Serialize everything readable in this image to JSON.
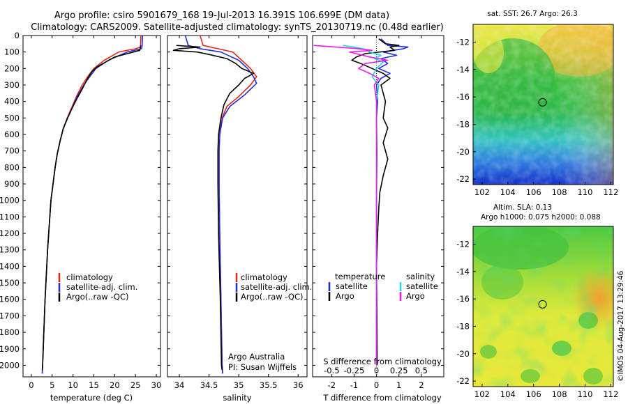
{
  "title_line1": "Argo profile: csiro 5901679_168 19-Jul-2013 16.391S 106.699E (DM data)",
  "title_line2": "Climatology: CARS2009. Satellite-adjusted climatology: synTS_20130719.nc (0.48d earlier)",
  "side_stamp": "©IMOS 04-Aug-2017 13:29:46",
  "colors": {
    "climatology": "#e8271c",
    "satellite": "#1f2fd6",
    "argo": "#000000",
    "sal_satellite": "#22d3e6",
    "sal_argo": "#e61ce6"
  },
  "chart_data": [
    {
      "type": "line",
      "name": "temperature",
      "xlabel": "temperature (deg C)",
      "ylabel": "",
      "xlim": [
        -2,
        31
      ],
      "ylim": [
        2070,
        0
      ],
      "xticks": [
        0,
        5,
        10,
        15,
        20,
        25,
        30
      ],
      "yticks": [
        0,
        100,
        200,
        300,
        400,
        500,
        600,
        700,
        800,
        900,
        1000,
        1100,
        1200,
        1300,
        1400,
        1500,
        1600,
        1700,
        1800,
        1900,
        2000
      ],
      "legend": [
        "climatology",
        "satellite-adj. clim.",
        "Argo(..raw -QC)"
      ],
      "series": [
        {
          "name": "climatology",
          "color": "climatology",
          "points": [
            [
              26.3,
              0
            ],
            [
              26.2,
              70
            ],
            [
              25,
              80
            ],
            [
              21,
              100
            ],
            [
              17.5,
              150
            ],
            [
              15,
              200
            ],
            [
              13.5,
              250
            ],
            [
              12.2,
              300
            ],
            [
              11,
              360
            ],
            [
              9.8,
              430
            ],
            [
              8.6,
              500
            ],
            [
              7.6,
              570
            ],
            [
              6.9,
              640
            ],
            [
              6.2,
              720
            ],
            [
              5.7,
              800
            ],
            [
              5.2,
              900
            ],
            [
              4.7,
              1000
            ],
            [
              4.3,
              1150
            ],
            [
              3.9,
              1300
            ],
            [
              3.6,
              1450
            ],
            [
              3.3,
              1600
            ],
            [
              3.0,
              1800
            ],
            [
              2.7,
              2000
            ],
            [
              2.6,
              2050
            ]
          ]
        },
        {
          "name": "satellite",
          "color": "satellite",
          "points": [
            [
              26.7,
              0
            ],
            [
              26.6,
              60
            ],
            [
              26.5,
              80
            ],
            [
              23,
              100
            ],
            [
              18.5,
              150
            ],
            [
              15.5,
              200
            ],
            [
              14,
              250
            ],
            [
              12.6,
              300
            ],
            [
              11,
              370
            ],
            [
              9.8,
              440
            ],
            [
              8.7,
              500
            ],
            [
              7.6,
              570
            ],
            [
              6.9,
              640
            ],
            [
              6.2,
              720
            ],
            [
              5.7,
              800
            ],
            [
              5.2,
              900
            ],
            [
              4.7,
              1000
            ],
            [
              4.3,
              1150
            ],
            [
              3.9,
              1300
            ],
            [
              3.6,
              1450
            ],
            [
              3.3,
              1600
            ],
            [
              3.0,
              1800
            ],
            [
              2.7,
              2000
            ],
            [
              2.6,
              2050
            ]
          ]
        },
        {
          "name": "Argo",
          "color": "argo",
          "points": [
            [
              26.3,
              60
            ],
            [
              26.0,
              90
            ],
            [
              20,
              130
            ],
            [
              17.2,
              170
            ],
            [
              15.8,
              190
            ],
            [
              14.5,
              220
            ],
            [
              13.3,
              270
            ],
            [
              12.3,
              320
            ],
            [
              11,
              380
            ],
            [
              9.8,
              440
            ],
            [
              8.7,
              500
            ],
            [
              7.7,
              560
            ],
            [
              6.9,
              640
            ],
            [
              6.2,
              720
            ],
            [
              5.7,
              800
            ],
            [
              5.2,
              900
            ],
            [
              4.7,
              1000
            ],
            [
              4.3,
              1150
            ],
            [
              3.9,
              1300
            ],
            [
              3.6,
              1450
            ],
            [
              3.3,
              1600
            ],
            [
              3.0,
              1800
            ],
            [
              2.7,
              2000
            ],
            [
              2.6,
              2030
            ]
          ]
        }
      ]
    },
    {
      "type": "line",
      "name": "salinity",
      "xlabel": "salinity",
      "xlim": [
        33.8,
        36.15
      ],
      "ylim": [
        2070,
        0
      ],
      "xticks": [
        34,
        34.5,
        35,
        35.5,
        36
      ],
      "xticklabels": [
        "34",
        "34.5",
        "35",
        "35.5",
        "36"
      ],
      "legend": [
        "climatology",
        "satellite-adj. clim.",
        "Argo(..raw -QC)"
      ],
      "annotation_line1": "Argo Australia",
      "annotation_line2": "PI: Susan Wijffels",
      "series": [
        {
          "name": "climatology",
          "color": "climatology",
          "points": [
            [
              34.35,
              0
            ],
            [
              34.4,
              60
            ],
            [
              34.65,
              80
            ],
            [
              34.9,
              100
            ],
            [
              35.05,
              150
            ],
            [
              35.2,
              200
            ],
            [
              35.3,
              250
            ],
            [
              35.2,
              300
            ],
            [
              35.0,
              370
            ],
            [
              34.8,
              430
            ],
            [
              34.72,
              500
            ],
            [
              34.68,
              600
            ],
            [
              34.67,
              700
            ],
            [
              34.67,
              900
            ],
            [
              34.68,
              1200
            ],
            [
              34.7,
              1600
            ],
            [
              34.72,
              2000
            ],
            [
              34.73,
              2050
            ]
          ]
        },
        {
          "name": "satellite",
          "color": "satellite",
          "points": [
            [
              34.1,
              0
            ],
            [
              34.15,
              60
            ],
            [
              34.35,
              80
            ],
            [
              34.7,
              100
            ],
            [
              35.0,
              150
            ],
            [
              35.15,
              200
            ],
            [
              35.25,
              250
            ],
            [
              35.3,
              290
            ],
            [
              35.1,
              360
            ],
            [
              34.85,
              430
            ],
            [
              34.73,
              500
            ],
            [
              34.68,
              600
            ],
            [
              34.67,
              700
            ],
            [
              34.67,
              900
            ],
            [
              34.68,
              1200
            ],
            [
              34.7,
              1600
            ],
            [
              34.72,
              2000
            ],
            [
              34.73,
              2050
            ]
          ]
        },
        {
          "name": "Argo",
          "color": "argo",
          "points": [
            [
              33.95,
              60
            ],
            [
              34.35,
              70
            ],
            [
              34.0,
              80
            ],
            [
              33.9,
              90
            ],
            [
              34.3,
              100
            ],
            [
              34.5,
              115
            ],
            [
              34.8,
              140
            ],
            [
              34.95,
              170
            ],
            [
              35.05,
              200
            ],
            [
              35.25,
              230
            ],
            [
              35.1,
              260
            ],
            [
              35.0,
              300
            ],
            [
              34.85,
              350
            ],
            [
              34.75,
              420
            ],
            [
              34.7,
              500
            ],
            [
              34.66,
              600
            ],
            [
              34.65,
              700
            ],
            [
              34.65,
              900
            ],
            [
              34.66,
              1200
            ],
            [
              34.69,
              1600
            ],
            [
              34.71,
              2000
            ],
            [
              34.72,
              2030
            ]
          ]
        }
      ]
    },
    {
      "type": "line",
      "name": "difference",
      "xlabel": "T difference from climatology",
      "xlabel_top": "S difference from climatology",
      "xlim": [
        -2.85,
        3.0
      ],
      "ylim": [
        2070,
        0
      ],
      "xticks": [
        -2,
        -1,
        0,
        1,
        2
      ],
      "xticks_top": [
        -0.5,
        -0.25,
        0,
        0.25,
        0.5
      ],
      "xticklabels_top": [
        "-0.5",
        "-0.25",
        "0",
        "0.25",
        "0.5"
      ],
      "legend_temperature_title": "temperature",
      "legend_salinity_title": "salinity",
      "legend_satellite": "satellite",
      "legend_argo": "Argo",
      "series": [
        {
          "name": "T satellite",
          "color": "satellite",
          "points": [
            [
              0.2,
              20
            ],
            [
              0.5,
              60
            ],
            [
              1.4,
              70
            ],
            [
              1.2,
              80
            ],
            [
              0.3,
              100
            ],
            [
              0.9,
              120
            ],
            [
              0.2,
              140
            ],
            [
              0.5,
              170
            ],
            [
              0.1,
              200
            ],
            [
              0.6,
              230
            ],
            [
              0.2,
              260
            ],
            [
              0.0,
              300
            ],
            [
              0.05,
              400
            ],
            [
              0.0,
              500
            ],
            [
              0.02,
              700
            ],
            [
              0.0,
              1000
            ],
            [
              0.0,
              1500
            ],
            [
              0.0,
              2000
            ]
          ]
        },
        {
          "name": "T Argo",
          "color": "argo",
          "points": [
            [
              0.1,
              20
            ],
            [
              0.4,
              50
            ],
            [
              1.0,
              60
            ],
            [
              0.6,
              70
            ],
            [
              0.8,
              90
            ],
            [
              -0.5,
              110
            ],
            [
              -0.9,
              130
            ],
            [
              -1.1,
              150
            ],
            [
              -0.7,
              170
            ],
            [
              -0.2,
              200
            ],
            [
              0.3,
              230
            ],
            [
              0.6,
              260
            ],
            [
              0.2,
              300
            ],
            [
              0.4,
              400
            ],
            [
              0.3,
              500
            ],
            [
              0.5,
              560
            ],
            [
              0.3,
              650
            ],
            [
              0.5,
              750
            ],
            [
              0.3,
              850
            ],
            [
              0.15,
              950
            ],
            [
              0.1,
              1050
            ],
            [
              0.05,
              1200
            ],
            [
              0.0,
              1400
            ],
            [
              0.02,
              1700
            ],
            [
              0.03,
              2000
            ]
          ]
        },
        {
          "name": "S satellite",
          "color": "sal_satellite",
          "points": [
            [
              -1.5,
              60
            ],
            [
              -1.0,
              70
            ],
            [
              -0.6,
              80
            ],
            [
              -0.3,
              100
            ],
            [
              0.2,
              120
            ],
            [
              -0.1,
              140
            ],
            [
              0.3,
              160
            ],
            [
              0.0,
              200
            ],
            [
              -0.2,
              250
            ],
            [
              0.1,
              300
            ],
            [
              0.0,
              400
            ],
            [
              0.0,
              600
            ],
            [
              0.0,
              1000
            ],
            [
              0.0,
              1500
            ],
            [
              0.0,
              2000
            ]
          ]
        },
        {
          "name": "S Argo",
          "color": "sal_argo",
          "points": [
            [
              -2.8,
              60
            ],
            [
              -1.8,
              70
            ],
            [
              -0.8,
              80
            ],
            [
              -0.2,
              90
            ],
            [
              -1.2,
              100
            ],
            [
              -0.3,
              130
            ],
            [
              0.5,
              150
            ],
            [
              -0.5,
              170
            ],
            [
              -0.8,
              200
            ],
            [
              -0.3,
              230
            ],
            [
              0.1,
              260
            ],
            [
              -0.1,
              300
            ],
            [
              0.0,
              400
            ],
            [
              0.0,
              600
            ],
            [
              0.0,
              1000
            ],
            [
              0.0,
              1500
            ],
            [
              0.0,
              2000
            ]
          ]
        }
      ]
    },
    {
      "type": "heatmap",
      "name": "sst_map",
      "title": "sat. SST: 26.7  Argo: 26.3",
      "xlim": [
        101.3,
        112.2
      ],
      "ylim": [
        -22.4,
        -10.7
      ],
      "xticks": [
        102,
        104,
        106,
        108,
        110,
        112
      ],
      "yticks": [
        -12,
        -14,
        -16,
        -18,
        -20,
        -22
      ],
      "marker": [
        106.699,
        -16.391
      ]
    },
    {
      "type": "heatmap",
      "name": "sla_map",
      "title_line1": "Altim. SLA: 0.13",
      "title_line2": "Argo h1000: 0.075 h2000: 0.088",
      "xlim": [
        101.3,
        112.2
      ],
      "ylim": [
        -22.4,
        -10.7
      ],
      "xticks": [
        102,
        104,
        106,
        108,
        110,
        112
      ],
      "yticks": [
        -12,
        -14,
        -16,
        -18,
        -20,
        -22
      ],
      "marker": [
        106.699,
        -16.391
      ]
    }
  ]
}
